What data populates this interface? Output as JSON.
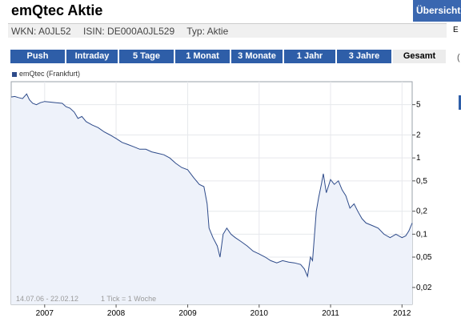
{
  "header": {
    "title": "emQtec Aktie",
    "overview_label": "Übersicht",
    "wkn": "WKN: A0JL52",
    "isin": "ISIN: DE000A0JL529",
    "type": "Typ: Aktie",
    "side_letter": "E",
    "side_paren": "("
  },
  "tabs": [
    {
      "label": "Push",
      "active": false
    },
    {
      "label": "Intraday",
      "active": false
    },
    {
      "label": "5 Tage",
      "active": false
    },
    {
      "label": "1 Monat",
      "active": false
    },
    {
      "label": "3 Monate",
      "active": false
    },
    {
      "label": "1 Jahr",
      "active": false
    },
    {
      "label": "3 Jahre",
      "active": false
    },
    {
      "label": "Gesamt",
      "active": true
    }
  ],
  "chart_data": {
    "type": "area",
    "series": [
      {
        "name": "emQtec (Frankfurt)",
        "color": "#2e4b8a",
        "fill": "#eef2fa"
      }
    ],
    "y_scale": "log",
    "y_ticks": [
      5,
      2,
      1,
      0.5,
      0.2,
      0.1,
      0.05,
      0.02
    ],
    "y_tick_labels": [
      "5",
      "2",
      "1",
      "0,5",
      "0,2",
      "0,1",
      "0,05",
      "0,02"
    ],
    "x_ticks": [
      "2007",
      "2008",
      "2009",
      "2010",
      "2011",
      "2012"
    ],
    "date_range": "14.07.06 - 22.02.12",
    "tick_note": "1 Tick = 1 Woche",
    "grid": true,
    "legend_position": "top-left",
    "points": [
      [
        "2006-07-14",
        6.3
      ],
      [
        "2006-08-01",
        6.4
      ],
      [
        "2006-08-20",
        6.2
      ],
      [
        "2006-09-10",
        6.0
      ],
      [
        "2006-10-01",
        6.9
      ],
      [
        "2006-10-15",
        5.8
      ],
      [
        "2006-11-01",
        5.2
      ],
      [
        "2006-11-20",
        5.0
      ],
      [
        "2006-12-10",
        5.3
      ],
      [
        "2007-01-01",
        5.5
      ],
      [
        "2007-02-01",
        5.4
      ],
      [
        "2007-03-01",
        5.3
      ],
      [
        "2007-04-01",
        5.2
      ],
      [
        "2007-04-20",
        4.7
      ],
      [
        "2007-05-10",
        4.5
      ],
      [
        "2007-06-01",
        4.0
      ],
      [
        "2007-06-20",
        3.3
      ],
      [
        "2007-07-10",
        3.5
      ],
      [
        "2007-08-01",
        3.0
      ],
      [
        "2007-09-01",
        2.7
      ],
      [
        "2007-10-01",
        2.5
      ],
      [
        "2007-11-01",
        2.2
      ],
      [
        "2007-12-01",
        2.0
      ],
      [
        "2008-01-01",
        1.8
      ],
      [
        "2008-02-01",
        1.6
      ],
      [
        "2008-03-01",
        1.5
      ],
      [
        "2008-04-01",
        1.4
      ],
      [
        "2008-05-01",
        1.3
      ],
      [
        "2008-06-01",
        1.3
      ],
      [
        "2008-07-01",
        1.2
      ],
      [
        "2008-08-01",
        1.15
      ],
      [
        "2008-09-01",
        1.1
      ],
      [
        "2008-10-01",
        1.0
      ],
      [
        "2008-11-01",
        0.85
      ],
      [
        "2008-12-01",
        0.75
      ],
      [
        "2009-01-01",
        0.7
      ],
      [
        "2009-02-01",
        0.55
      ],
      [
        "2009-03-01",
        0.45
      ],
      [
        "2009-03-25",
        0.42
      ],
      [
        "2009-04-10",
        0.25
      ],
      [
        "2009-04-20",
        0.12
      ],
      [
        "2009-05-10",
        0.09
      ],
      [
        "2009-06-01",
        0.07
      ],
      [
        "2009-06-15",
        0.05
      ],
      [
        "2009-07-01",
        0.1
      ],
      [
        "2009-07-20",
        0.12
      ],
      [
        "2009-08-10",
        0.1
      ],
      [
        "2009-09-01",
        0.09
      ],
      [
        "2009-10-01",
        0.08
      ],
      [
        "2009-11-01",
        0.07
      ],
      [
        "2009-12-01",
        0.06
      ],
      [
        "2010-01-01",
        0.055
      ],
      [
        "2010-02-01",
        0.05
      ],
      [
        "2010-03-01",
        0.045
      ],
      [
        "2010-04-01",
        0.042
      ],
      [
        "2010-05-01",
        0.045
      ],
      [
        "2010-06-01",
        0.043
      ],
      [
        "2010-07-01",
        0.042
      ],
      [
        "2010-08-01",
        0.04
      ],
      [
        "2010-08-20",
        0.035
      ],
      [
        "2010-09-05",
        0.028
      ],
      [
        "2010-09-20",
        0.05
      ],
      [
        "2010-10-01",
        0.045
      ],
      [
        "2010-10-10",
        0.09
      ],
      [
        "2010-10-20",
        0.2
      ],
      [
        "2010-11-01",
        0.3
      ],
      [
        "2010-11-15",
        0.45
      ],
      [
        "2010-11-25",
        0.62
      ],
      [
        "2010-12-10",
        0.35
      ],
      [
        "2011-01-01",
        0.52
      ],
      [
        "2011-01-20",
        0.45
      ],
      [
        "2011-02-10",
        0.5
      ],
      [
        "2011-03-01",
        0.38
      ],
      [
        "2011-03-20",
        0.32
      ],
      [
        "2011-04-10",
        0.22
      ],
      [
        "2011-05-01",
        0.25
      ],
      [
        "2011-05-20",
        0.2
      ],
      [
        "2011-06-10",
        0.16
      ],
      [
        "2011-07-01",
        0.14
      ],
      [
        "2011-08-01",
        0.13
      ],
      [
        "2011-09-01",
        0.12
      ],
      [
        "2011-10-01",
        0.1
      ],
      [
        "2011-11-01",
        0.09
      ],
      [
        "2011-12-01",
        0.1
      ],
      [
        "2012-01-01",
        0.09
      ],
      [
        "2012-01-20",
        0.095
      ],
      [
        "2012-02-05",
        0.11
      ],
      [
        "2012-02-22",
        0.14
      ]
    ]
  }
}
